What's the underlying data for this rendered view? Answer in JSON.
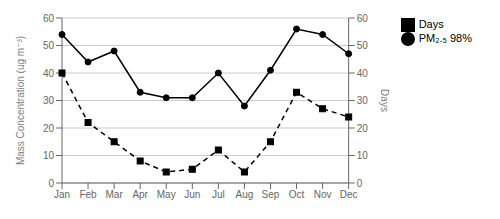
{
  "chart_data": {
    "type": "line",
    "categories": [
      "Jan",
      "Feb",
      "Mar",
      "Apr",
      "May",
      "Jun",
      "Jul",
      "Aug",
      "Sep",
      "Oct",
      "Nov",
      "Dec"
    ],
    "ylabel": "Mass Concentration (ug m⁻³)",
    "y2label": "Days",
    "ylim": [
      0,
      60
    ],
    "yticks": [
      0,
      10,
      20,
      30,
      40,
      50,
      60
    ],
    "y2lim": [
      0,
      60
    ],
    "y2ticks": [
      0,
      10,
      20,
      30,
      40,
      50,
      60
    ],
    "grid": true,
    "legend": "right",
    "series": [
      {
        "name": "PM₂.₅ 98%",
        "color": "black",
        "marker": "circle",
        "line_style": "solid",
        "values": [
          54,
          44,
          48,
          33,
          31,
          31,
          40,
          28,
          41,
          56,
          54,
          47
        ]
      },
      {
        "name": "Days",
        "color": "black",
        "marker": "square",
        "line_style": "dashed",
        "axis": "y2",
        "values": [
          40,
          22,
          15,
          8,
          4,
          5,
          12,
          4,
          15,
          33,
          27,
          24
        ]
      }
    ]
  }
}
